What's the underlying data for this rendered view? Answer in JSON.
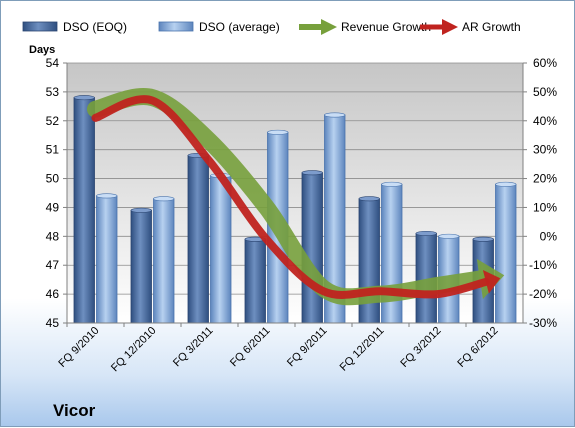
{
  "company": "Vicor",
  "chart_data": {
    "type": "bar",
    "categories": [
      "FQ 9/2010",
      "FQ 12/2010",
      "FQ 3/2011",
      "FQ 6/2011",
      "FQ 9/2011",
      "FQ 12/2011",
      "FQ 3/2012",
      "FQ 6/2012"
    ],
    "ylabel": "Days",
    "ylim": [
      45,
      54
    ],
    "y_ticks": [
      "45",
      "46",
      "47",
      "48",
      "49",
      "50",
      "51",
      "52",
      "53",
      "54"
    ],
    "y2lim": [
      -30,
      60
    ],
    "y2_ticks": [
      "-30%",
      "-20%",
      "-10%",
      "0%",
      "10%",
      "20%",
      "30%",
      "40%",
      "50%",
      "60%"
    ],
    "grid": true,
    "legend_position": "top",
    "series": [
      {
        "name": "DSO (EOQ)",
        "type": "bar",
        "color": "#4f6fa0",
        "values": [
          52.8,
          48.9,
          50.8,
          47.9,
          50.2,
          49.3,
          48.1,
          47.9
        ]
      },
      {
        "name": "DSO (average)",
        "type": "bar",
        "color": "#8fb3df",
        "values": [
          49.4,
          49.3,
          50.1,
          51.6,
          52.2,
          49.8,
          48.0,
          49.8
        ]
      },
      {
        "name": "Revenue Growth",
        "type": "line",
        "axis": "secondary",
        "color": "#77a03c",
        "values": [
          44,
          48,
          33,
          10,
          -18,
          -20,
          -17,
          -14
        ]
      },
      {
        "name": "AR Growth",
        "type": "line",
        "axis": "secondary",
        "color": "#c0231f",
        "values": [
          41,
          47,
          26,
          -1,
          -19,
          -19,
          -20,
          -15
        ]
      }
    ]
  }
}
